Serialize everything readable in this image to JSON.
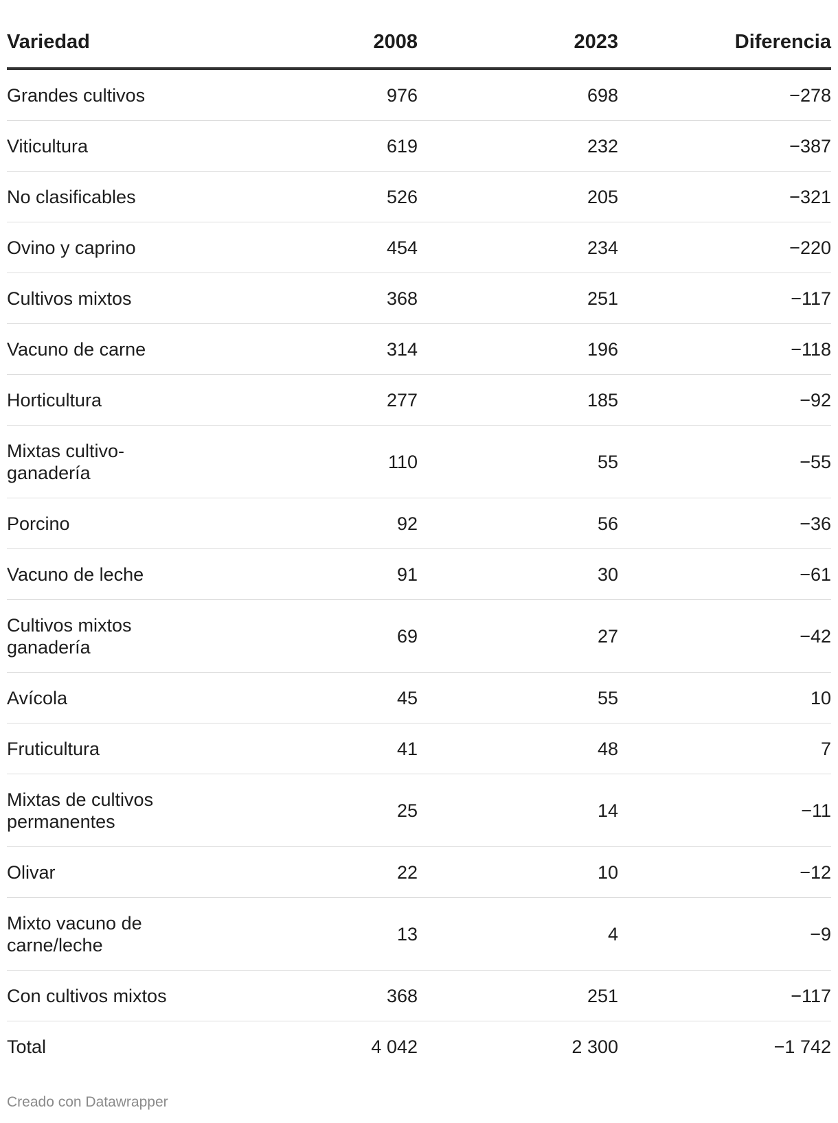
{
  "chart_data": {
    "type": "table",
    "columns": [
      "Variedad",
      "2008",
      "2023",
      "Diferencia"
    ],
    "rows": [
      {
        "variedad": "Grandes cultivos",
        "y2008": "976",
        "y2023": "698",
        "diferencia": "−278"
      },
      {
        "variedad": "Viticultura",
        "y2008": "619",
        "y2023": "232",
        "diferencia": "−387"
      },
      {
        "variedad": "No clasificables",
        "y2008": "526",
        "y2023": "205",
        "diferencia": "−321"
      },
      {
        "variedad": "Ovino y caprino",
        "y2008": "454",
        "y2023": "234",
        "diferencia": "−220"
      },
      {
        "variedad": "Cultivos mixtos",
        "y2008": "368",
        "y2023": "251",
        "diferencia": "−117"
      },
      {
        "variedad": "Vacuno de carne",
        "y2008": "314",
        "y2023": "196",
        "diferencia": "−118"
      },
      {
        "variedad": "Horticultura",
        "y2008": "277",
        "y2023": "185",
        "diferencia": "−92"
      },
      {
        "variedad": "Mixtas cultivo-ganadería",
        "y2008": "110",
        "y2023": "55",
        "diferencia": "−55"
      },
      {
        "variedad": "Porcino",
        "y2008": "92",
        "y2023": "56",
        "diferencia": "−36"
      },
      {
        "variedad": "Vacuno de leche",
        "y2008": "91",
        "y2023": "30",
        "diferencia": "−61"
      },
      {
        "variedad": "Cultivos mixtos ganadería",
        "y2008": "69",
        "y2023": "27",
        "diferencia": "−42"
      },
      {
        "variedad": "Avícola",
        "y2008": "45",
        "y2023": "55",
        "diferencia": "10"
      },
      {
        "variedad": "Fruticultura",
        "y2008": "41",
        "y2023": "48",
        "diferencia": "7"
      },
      {
        "variedad": "Mixtas de cultivos permanentes",
        "y2008": "25",
        "y2023": "14",
        "diferencia": "−11"
      },
      {
        "variedad": "Olivar",
        "y2008": "22",
        "y2023": "10",
        "diferencia": "−12"
      },
      {
        "variedad": "Mixto vacuno de carne/leche",
        "y2008": "13",
        "y2023": "4",
        "diferencia": "−9"
      },
      {
        "variedad": "Con cultivos mixtos",
        "y2008": "368",
        "y2023": "251",
        "diferencia": "−117"
      },
      {
        "variedad": "Total",
        "y2008": "4 042",
        "y2023": "2 300",
        "diferencia": "−1 742"
      }
    ]
  },
  "footer": {
    "credit": "Creado con Datawrapper"
  }
}
